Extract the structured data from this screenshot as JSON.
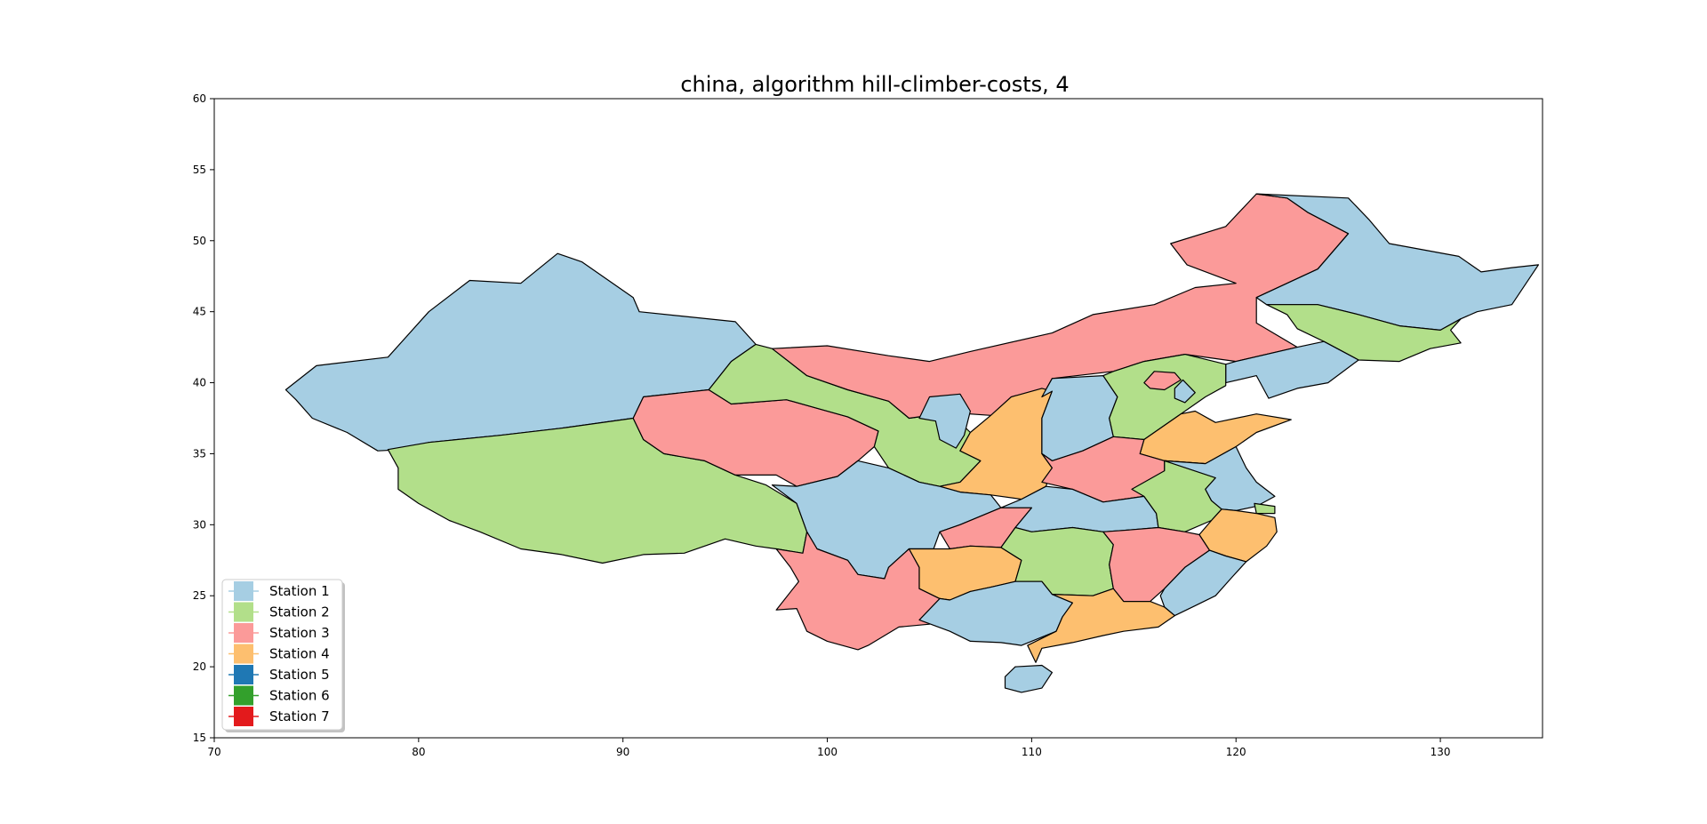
{
  "title": "china, algorithm hill-climber-costs, 4",
  "station_colors": {
    "s1": "#a6cee3",
    "s2": "#b2df8a",
    "s3": "#fb9a99",
    "s4": "#fdbf6f",
    "s5": "#1f78b4",
    "s6": "#33a02c",
    "s7": "#e31a1c"
  },
  "chart_data": {
    "type": "map",
    "xlim": [
      70,
      135
    ],
    "ylim": [
      15,
      60
    ],
    "x_ticks": [
      "70",
      "80",
      "90",
      "100",
      "110",
      "120",
      "130"
    ],
    "y_ticks": [
      "15",
      "20",
      "25",
      "30",
      "35",
      "40",
      "45",
      "50",
      "55",
      "60"
    ],
    "legend_placement": "lower-left",
    "legend": [
      {
        "label": "Station 1",
        "color": "#a6cee3"
      },
      {
        "label": "Station 2",
        "color": "#b2df8a"
      },
      {
        "label": "Station 3",
        "color": "#fb9a99"
      },
      {
        "label": "Station 4",
        "color": "#fdbf6f"
      },
      {
        "label": "Station 5",
        "color": "#1f78b4"
      },
      {
        "label": "Station 6",
        "color": "#33a02c"
      },
      {
        "label": "Station 7",
        "color": "#e31a1c"
      }
    ],
    "regions": [
      {
        "name": "Xinjiang",
        "station": 1
      },
      {
        "name": "Tibet",
        "station": 2
      },
      {
        "name": "Qinghai",
        "station": 3
      },
      {
        "name": "Gansu",
        "station": 2
      },
      {
        "name": "Inner Mongolia",
        "station": 3
      },
      {
        "name": "Heilongjiang",
        "station": 1
      },
      {
        "name": "Jilin",
        "station": 2
      },
      {
        "name": "Liaoning",
        "station": 1
      },
      {
        "name": "Ningxia",
        "station": 1
      },
      {
        "name": "Shaanxi",
        "station": 4
      },
      {
        "name": "Shanxi",
        "station": 1
      },
      {
        "name": "Hebei",
        "station": 2
      },
      {
        "name": "Beijing",
        "station": 3
      },
      {
        "name": "Tianjin",
        "station": 1
      },
      {
        "name": "Shandong",
        "station": 4
      },
      {
        "name": "Henan",
        "station": 3
      },
      {
        "name": "Sichuan",
        "station": 1
      },
      {
        "name": "Chongqing",
        "station": 3
      },
      {
        "name": "Hubei",
        "station": 1
      },
      {
        "name": "Anhui",
        "station": 2
      },
      {
        "name": "Jiangsu",
        "station": 1
      },
      {
        "name": "Shanghai",
        "station": 2
      },
      {
        "name": "Zhejiang",
        "station": 4
      },
      {
        "name": "Yunnan",
        "station": 3
      },
      {
        "name": "Guizhou",
        "station": 4
      },
      {
        "name": "Hunan",
        "station": 2
      },
      {
        "name": "Jiangxi",
        "station": 3
      },
      {
        "name": "Fujian",
        "station": 1
      },
      {
        "name": "Guangxi",
        "station": 1
      },
      {
        "name": "Guangdong",
        "station": 4
      },
      {
        "name": "Hainan",
        "station": 1
      }
    ]
  }
}
